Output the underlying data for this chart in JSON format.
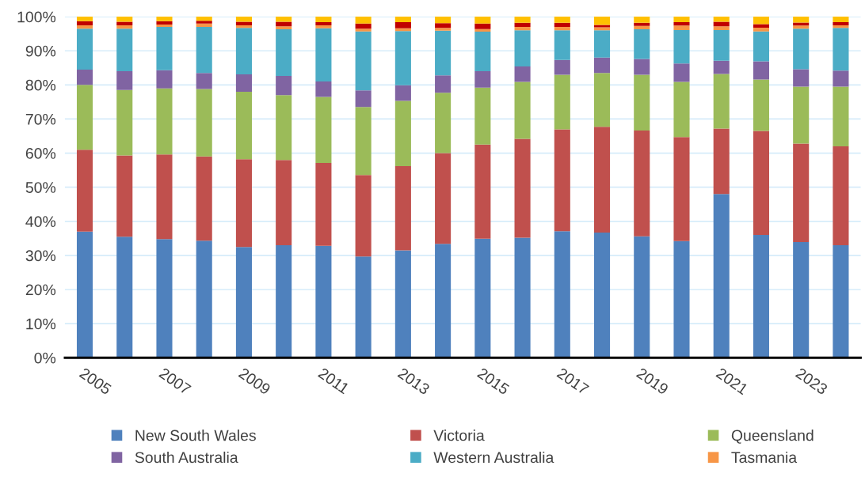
{
  "chart_data": {
    "type": "bar",
    "stacked": true,
    "legend": "bottom",
    "grid": "y",
    "categories": [
      "2005",
      null,
      "2007",
      null,
      "2009",
      null,
      "2011",
      null,
      "2013",
      null,
      "2015",
      null,
      "2017",
      null,
      "2019",
      null,
      "2021",
      null,
      "2023",
      null
    ],
    "ylim": [
      0,
      100
    ],
    "yticks": [
      {
        "value": 0,
        "label": "0%"
      },
      {
        "value": 10,
        "label": "10%"
      },
      {
        "value": 20,
        "label": "20%"
      },
      {
        "value": 30,
        "label": "30%"
      },
      {
        "value": 40,
        "label": "40%"
      },
      {
        "value": 50,
        "label": "50%"
      },
      {
        "value": 60,
        "label": "60%"
      },
      {
        "value": 70,
        "label": "70%"
      },
      {
        "value": 80,
        "label": "80%"
      },
      {
        "value": 90,
        "label": "90%"
      },
      {
        "value": 100,
        "label": "100%"
      }
    ],
    "series": [
      {
        "name": "New South Wales",
        "color": "#4f81bd",
        "values": [
          37,
          35.5,
          34.8,
          34.3,
          32.5,
          33,
          32.8,
          29.7,
          31.5,
          33.4,
          34.9,
          35.2,
          37.1,
          36.7,
          35.6,
          34.2,
          48,
          36,
          33.9,
          33
        ]
      },
      {
        "name": "Victoria",
        "color": "#c0504d",
        "values": [
          24,
          23.8,
          24.8,
          24.7,
          25.7,
          25,
          24.3,
          23.9,
          24.7,
          26.6,
          27.6,
          29,
          29.9,
          31,
          31,
          30.5,
          19.2,
          30.5,
          28.9,
          29
        ]
      },
      {
        "name": "Queensland",
        "color": "#9bbb59",
        "values": [
          19,
          19.2,
          19.4,
          19.8,
          19.8,
          19,
          19.4,
          19.9,
          19.1,
          17.7,
          16.7,
          16.7,
          16,
          15.8,
          16.4,
          16.2,
          16,
          15.1,
          16.7,
          17.5
        ]
      },
      {
        "name": "South Australia",
        "color": "#8064a2",
        "values": [
          4.5,
          5.5,
          5.3,
          4.7,
          5.1,
          5.6,
          4.5,
          4.9,
          4.6,
          5.1,
          4.8,
          4.5,
          4.3,
          4.5,
          4.6,
          5.4,
          3.9,
          5.3,
          5.1,
          4.7
        ]
      },
      {
        "name": "Western Australia",
        "color": "#4bacc6",
        "values": [
          12,
          12.5,
          12.7,
          13.5,
          13.6,
          13.7,
          15.6,
          17.3,
          15.9,
          13.1,
          11.6,
          10.6,
          8.7,
          8,
          8.7,
          9.8,
          9,
          8.8,
          11.9,
          12.5
        ]
      },
      {
        "name": "Tasmania",
        "color": "#f79646",
        "values": [
          1,
          1,
          0.7,
          1,
          0.8,
          0.9,
          0.9,
          0.8,
          0.8,
          0.8,
          0.8,
          1,
          1,
          0.9,
          1,
          1.3,
          1.1,
          1.1,
          0.9,
          0.8
        ]
      },
      {
        "color": "#c00000",
        "values": [
          1.2,
          1,
          1,
          0.8,
          1,
          1.3,
          0.9,
          1.5,
          1.8,
          1.4,
          1.6,
          1.2,
          1.2,
          0.7,
          0.9,
          1,
          1.3,
          1,
          0.9,
          0.9
        ]
      },
      {
        "color": "#ffc000",
        "values": [
          1.3,
          1.5,
          1.3,
          1.2,
          1.5,
          1.5,
          1.6,
          2,
          1.6,
          1.9,
          2,
          1.8,
          1.8,
          2.4,
          1.8,
          1.6,
          1.5,
          2.2,
          1.7,
          1.6
        ]
      }
    ]
  }
}
